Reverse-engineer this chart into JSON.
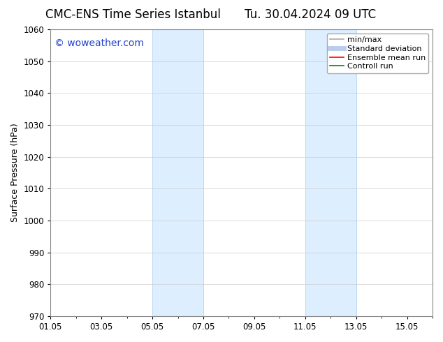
{
  "title_left": "CMC-ENS Time Series Istanbul",
  "title_right": "Tu. 30.04.2024 09 UTC",
  "ylabel": "Surface Pressure (hPa)",
  "ylim": [
    970,
    1060
  ],
  "yticks": [
    970,
    980,
    990,
    1000,
    1010,
    1020,
    1030,
    1040,
    1050,
    1060
  ],
  "xlim": [
    0,
    15
  ],
  "xtick_labels": [
    "01.05",
    "03.05",
    "05.05",
    "07.05",
    "09.05",
    "11.05",
    "13.05",
    "15.05"
  ],
  "xtick_positions": [
    0,
    2,
    4,
    6,
    8,
    10,
    12,
    14
  ],
  "shaded_bands": [
    {
      "x_start": 4,
      "x_end": 6
    },
    {
      "x_start": 10,
      "x_end": 12
    }
  ],
  "shaded_color": "#ddeeff",
  "shaded_edge_color": "#aaccee",
  "background_color": "#ffffff",
  "spine_color": "#888888",
  "grid_color": "#cccccc",
  "watermark_text": "© woweather.com",
  "watermark_color": "#2244cc",
  "legend_items": [
    {
      "label": "min/max",
      "color": "#aaaaaa",
      "lw": 1.2,
      "style": "solid"
    },
    {
      "label": "Standard deviation",
      "color": "#bbccee",
      "lw": 5,
      "style": "solid"
    },
    {
      "label": "Ensemble mean run",
      "color": "#ff0000",
      "lw": 1.2,
      "style": "solid"
    },
    {
      "label": "Controll run",
      "color": "#008800",
      "lw": 1.2,
      "style": "solid"
    }
  ],
  "title_fontsize": 12,
  "label_fontsize": 9,
  "tick_fontsize": 8.5,
  "legend_fontsize": 8,
  "watermark_fontsize": 10
}
